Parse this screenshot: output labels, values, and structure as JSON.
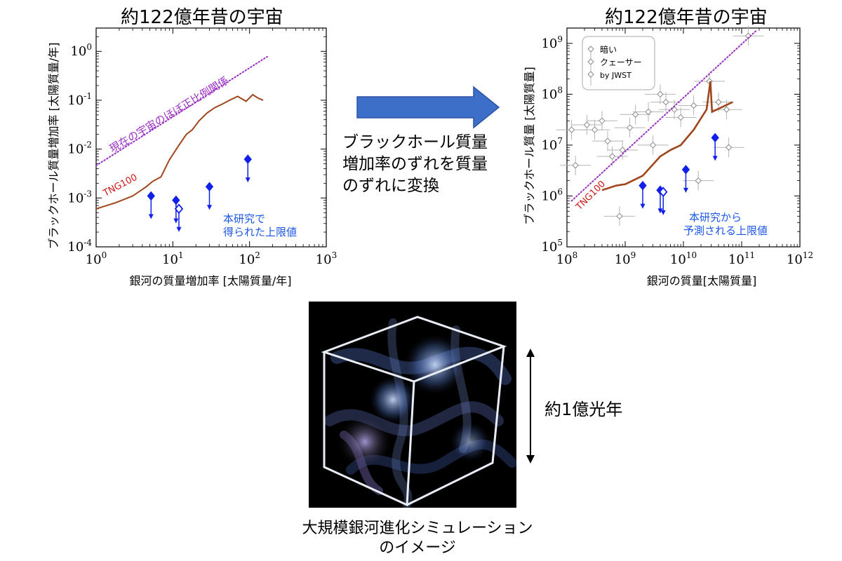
{
  "left_panel": {
    "title": "約122億年昔の宇宙"
  },
  "right_panel": {
    "title": "約122億年昔の宇宙"
  },
  "middle": {
    "lines": [
      "ブラックホール質量",
      "増加率のずれを質量",
      "のずれに変換"
    ]
  },
  "cube": {
    "scale_label": "約1億光年",
    "caption_lines": [
      "大規模銀河進化シミュレーション",
      "のイメージ"
    ]
  },
  "colors": {
    "relation": "#9a2fc4",
    "tng": "#a0461c",
    "limits": "#1020e8",
    "annotation_text": "#1a55e8",
    "tng_label": "#d01818",
    "arrow": "#3d6fc9",
    "quasars": "#8a8a8a"
  },
  "chart_data": [
    {
      "type": "line",
      "title": "約122億年昔の宇宙",
      "xlabel": "銀河の質量増加率 [太陽質量/年]",
      "ylabel": "ブラックホール質量増加率 [太陽質量/年]",
      "xscale": "log",
      "yscale": "log",
      "xlim": [
        1,
        1000
      ],
      "ylim": [
        0.0001,
        3
      ],
      "x_ticks": [
        1,
        10,
        100,
        1000
      ],
      "x_tick_labels": [
        {
          "base": "10",
          "exp": "0"
        },
        {
          "base": "10",
          "exp": "1"
        },
        {
          "base": "10",
          "exp": "2"
        },
        {
          "base": "10",
          "exp": "3"
        }
      ],
      "y_ticks": [
        0.0001,
        0.001,
        0.01,
        0.1,
        1
      ],
      "y_tick_labels": [
        {
          "base": "10",
          "exp": "-4"
        },
        {
          "base": "10",
          "exp": "-3"
        },
        {
          "base": "10",
          "exp": "-2"
        },
        {
          "base": "10",
          "exp": "-1"
        },
        {
          "base": "10",
          "exp": "0"
        }
      ],
      "grid": false,
      "series": [
        {
          "name": "現在の宇宙のほぼ正比例関係",
          "style": "dotted",
          "x": [
            1,
            170
          ],
          "y": [
            0.0046,
            0.78
          ]
        },
        {
          "name": "TNG100",
          "style": "solid",
          "x": [
            1,
            1.8,
            3,
            4.5,
            5.5,
            7,
            9,
            12,
            15,
            18,
            22,
            28,
            35,
            45,
            55,
            70,
            90,
            110,
            130,
            150
          ],
          "y": [
            0.0006,
            0.0008,
            0.0011,
            0.0017,
            0.0022,
            0.0027,
            0.006,
            0.012,
            0.02,
            0.025,
            0.038,
            0.055,
            0.07,
            0.085,
            0.1,
            0.12,
            0.095,
            0.13,
            0.11,
            0.1
          ]
        }
      ],
      "upper_limits": [
        {
          "x": 5.2,
          "y": 0.0011,
          "marker": "filled-diamond"
        },
        {
          "x": 11,
          "y": 0.0009,
          "marker": "filled-diamond"
        },
        {
          "x": 12,
          "y": 0.0006,
          "marker": "open-diamond"
        },
        {
          "x": 30,
          "y": 0.0017,
          "marker": "filled-diamond"
        },
        {
          "x": 95,
          "y": 0.0062,
          "marker": "filled-diamond"
        }
      ],
      "annotations": {
        "relation_label": "現在の宇宙のほぼ正比例関係",
        "tng_label": "TNG100",
        "limits_label": [
          "本研究で",
          "得られた上限値"
        ]
      }
    },
    {
      "type": "scatter",
      "title": "約122億年昔の宇宙",
      "xlabel": "銀河の質量[太陽質量]",
      "ylabel": "ブラックホール質量 [太陽質量]",
      "xscale": "log",
      "yscale": "log",
      "xlim": [
        100000000,
        1000000000000
      ],
      "ylim": [
        100000,
        2000000000
      ],
      "x_ticks": [
        100000000,
        1000000000,
        10000000000,
        100000000000,
        1000000000000
      ],
      "x_tick_labels": [
        {
          "base": "10",
          "exp": "8"
        },
        {
          "base": "10",
          "exp": "9"
        },
        {
          "base": "10",
          "exp": "10"
        },
        {
          "base": "10",
          "exp": "11"
        },
        {
          "base": "10",
          "exp": "12"
        }
      ],
      "y_ticks": [
        100000,
        1000000,
        10000000,
        100000000,
        1000000000
      ],
      "y_tick_labels": [
        {
          "base": "10",
          "exp": "5"
        },
        {
          "base": "10",
          "exp": "6"
        },
        {
          "base": "10",
          "exp": "7"
        },
        {
          "base": "10",
          "exp": "8"
        },
        {
          "base": "10",
          "exp": "9"
        }
      ],
      "grid": false,
      "legend": {
        "placement": "top-left",
        "entries": [
          "暗い",
          "クェーサー",
          "by JWST"
        ]
      },
      "series": [
        {
          "name": "現在の宇宙のほぼ正比例関係",
          "style": "dotted",
          "x": [
            120000000,
            180000000000
          ],
          "y": [
            800000,
            1800000000
          ]
        },
        {
          "name": "TNG100",
          "style": "solid",
          "x": [
            400000000,
            700000000,
            1000000000,
            2000000000,
            4000000000,
            6000000000,
            9000000000,
            15000000000,
            25000000000,
            29000000000,
            31000000000,
            70000000000
          ],
          "y": [
            1300000,
            1600000,
            1700000,
            2500000,
            6000000,
            8000000,
            10000000,
            20000000,
            50000000,
            180000000,
            45000000,
            70000000
          ]
        }
      ],
      "quasar_points": [
        {
          "x": 120000000,
          "y": 20000000
        },
        {
          "x": 140000000,
          "y": 4000000
        },
        {
          "x": 220000000,
          "y": 25000000
        },
        {
          "x": 300000000,
          "y": 20000000
        },
        {
          "x": 400000000,
          "y": 30000000
        },
        {
          "x": 500000000,
          "y": 12000000
        },
        {
          "x": 600000000,
          "y": 6000000
        },
        {
          "x": 800000000,
          "y": 400000
        },
        {
          "x": 900000000,
          "y": 8000000
        },
        {
          "x": 1200000000,
          "y": 22000000
        },
        {
          "x": 1500000000,
          "y": 40000000
        },
        {
          "x": 2500000000,
          "y": 45000000
        },
        {
          "x": 3000000000,
          "y": 10000000
        },
        {
          "x": 4000000000,
          "y": 100000000
        },
        {
          "x": 5000000000,
          "y": 70000000
        },
        {
          "x": 7000000000,
          "y": 50000000
        },
        {
          "x": 9000000000,
          "y": 35000000
        },
        {
          "x": 15000000000,
          "y": 60000000
        },
        {
          "x": 18000000000,
          "y": 2000000
        },
        {
          "x": 28000000000,
          "y": 180000000
        },
        {
          "x": 40000000000,
          "y": 70000000
        },
        {
          "x": 55000000000,
          "y": 50000000
        },
        {
          "x": 60000000000,
          "y": 9000000
        },
        {
          "x": 130000000000,
          "y": 1400000000
        }
      ],
      "upper_limits": [
        {
          "x": 2000000000,
          "y": 1600000,
          "marker": "filled-diamond"
        },
        {
          "x": 4000000000,
          "y": 1300000,
          "marker": "filled-diamond"
        },
        {
          "x": 4500000000,
          "y": 1200000,
          "marker": "open-diamond"
        },
        {
          "x": 11000000000,
          "y": 3300000,
          "marker": "filled-diamond"
        },
        {
          "x": 35000000000,
          "y": 14000000,
          "marker": "filled-diamond"
        }
      ],
      "annotations": {
        "tng_label": "TNG100",
        "limits_label": [
          "本研究から",
          "予測される上限値"
        ]
      }
    }
  ]
}
